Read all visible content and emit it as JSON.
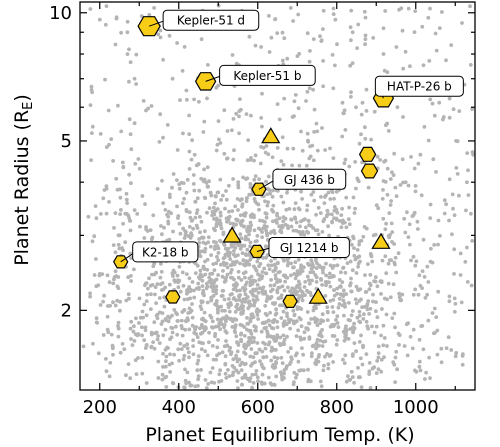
{
  "chart_data": {
    "type": "scatter",
    "xlabel": "Planet Equilibrium Temp. (K)",
    "ylabel_main": "Planet Radius (R",
    "ylabel_sub": "E",
    "ylabel_end": ")",
    "xlim": [
      150,
      1150
    ],
    "ylim": [
      1.3,
      10.6
    ],
    "yscale": "log",
    "x_ticks": [
      200,
      400,
      600,
      800,
      1000
    ],
    "y_ticks": [
      2,
      5,
      10
    ],
    "background_color": "#b4b4b4",
    "colors": {
      "highlight_fill": "#f7cd17",
      "highlight_stroke": "#000000",
      "background_points": "#b4b4b4"
    },
    "hexagon_points": [
      {
        "x": 325,
        "y": 9.3,
        "label": "Kepler-51 d"
      },
      {
        "x": 468,
        "y": 6.9,
        "label": "Kepler-51 b"
      },
      {
        "x": 918,
        "y": 6.3,
        "label": "HAT-P-26 b"
      },
      {
        "x": 878,
        "y": 4.65,
        "label": ""
      },
      {
        "x": 883,
        "y": 4.25,
        "label": ""
      },
      {
        "x": 603,
        "y": 3.85,
        "label": "GJ 436 b"
      },
      {
        "x": 598,
        "y": 2.75,
        "label": "GJ 1214 b"
      },
      {
        "x": 253,
        "y": 2.6,
        "label": "K2-18 b"
      },
      {
        "x": 385,
        "y": 2.15,
        "label": ""
      },
      {
        "x": 682,
        "y": 2.1,
        "label": ""
      }
    ],
    "triangle_points": [
      {
        "x": 633,
        "y": 5.1
      },
      {
        "x": 535,
        "y": 2.98
      },
      {
        "x": 912,
        "y": 2.88
      },
      {
        "x": 753,
        "y": 2.14
      }
    ]
  }
}
